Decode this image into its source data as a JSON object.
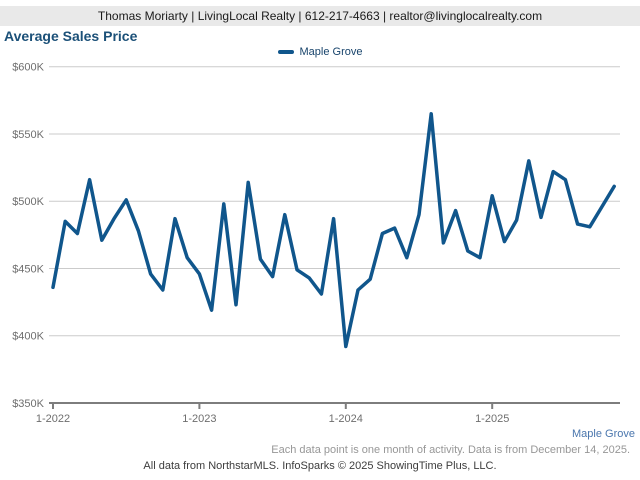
{
  "header": {
    "contact_line": "Thomas Moriarty | LivingLocal Realty | 612-217-4663 | realtor@livinglocalrealty.com"
  },
  "title": "Average Sales Price",
  "legend": {
    "series_label": "Maple Grove"
  },
  "footer": {
    "series_label": "Maple Grove",
    "note": "Each data point is one month of activity. Data is from December 14, 2025.",
    "attribution": "All data from NorthstarMLS. InfoSparks © 2025 ShowingTime Plus, LLC."
  },
  "colors": {
    "line": "#10568c",
    "title": "#1b5078",
    "header_bar_bg": "#e9e9e9",
    "gridline": "#cbcbcb",
    "axis": "#7d7d7d",
    "tick_label": "#6e6e6e",
    "bottom_series_label": "#4a76ad"
  },
  "chart_data": {
    "type": "line",
    "title": "Average Sales Price",
    "grid": "horizontal",
    "legend_position": "top-center",
    "y_axis": {
      "min": 350000,
      "max": 600000,
      "step": 50000,
      "unit": "USD"
    },
    "y_tick_labels": [
      "$350K",
      "$400K",
      "$450K",
      "$500K",
      "$550K",
      "$600K"
    ],
    "x_tick_labels": [
      "1-2022",
      "1-2023",
      "1-2024",
      "1-2025"
    ],
    "x_tick_month_indices": [
      0,
      12,
      24,
      36
    ],
    "categories": [
      "1-2022",
      "2-2022",
      "3-2022",
      "4-2022",
      "5-2022",
      "6-2022",
      "7-2022",
      "8-2022",
      "9-2022",
      "10-2022",
      "11-2022",
      "12-2022",
      "1-2023",
      "2-2023",
      "3-2023",
      "4-2023",
      "5-2023",
      "6-2023",
      "7-2023",
      "8-2023",
      "9-2023",
      "10-2023",
      "11-2023",
      "12-2023",
      "1-2024",
      "2-2024",
      "3-2024",
      "4-2024",
      "5-2024",
      "6-2024",
      "7-2024",
      "8-2024",
      "9-2024",
      "10-2024",
      "11-2024",
      "12-2024",
      "1-2025",
      "2-2025",
      "3-2025",
      "4-2025",
      "5-2025",
      "6-2025",
      "7-2025",
      "8-2025",
      "9-2025",
      "10-2025",
      "11-2025"
    ],
    "series": [
      {
        "name": "Maple Grove",
        "color": "#10568c",
        "values_thousands": [
          436,
          485,
          476,
          516,
          471,
          487,
          501,
          478,
          446,
          434,
          487,
          458,
          446,
          419,
          498,
          423,
          514,
          457,
          444,
          490,
          449,
          443,
          431,
          487,
          392,
          434,
          442,
          476,
          480,
          458,
          490,
          565,
          469,
          493,
          463,
          458,
          504,
          470,
          486,
          530,
          488,
          522,
          516,
          483,
          481,
          496,
          511
        ]
      }
    ]
  }
}
